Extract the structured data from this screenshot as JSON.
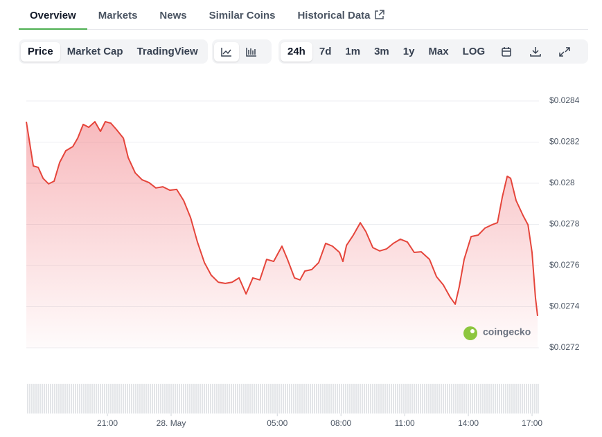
{
  "tabs": [
    "Overview",
    "Markets",
    "News",
    "Similar Coins",
    "Historical Data"
  ],
  "view_buttons": [
    "Price",
    "Market Cap",
    "TradingView"
  ],
  "range_buttons": [
    "24h",
    "7d",
    "1m",
    "3m",
    "1y",
    "Max",
    "LOG"
  ],
  "watermark": "coingecko",
  "chart_data": {
    "type": "line",
    "color": "#e5453b",
    "grid": true,
    "x": [
      17.18,
      17.51,
      17.74,
      17.97,
      18.23,
      18.49,
      18.75,
      19.04,
      19.37,
      19.6,
      19.86,
      20.12,
      20.41,
      20.67,
      20.9,
      21.16,
      21.42,
      21.75,
      21.98,
      22.31,
      22.63,
      22.96,
      23.28,
      23.61,
      23.94,
      24.26,
      24.59,
      24.92,
      25.24,
      25.57,
      25.89,
      26.22,
      26.55,
      26.87,
      27.2,
      27.53,
      27.85,
      28.18,
      28.5,
      28.83,
      29.22,
      29.48,
      29.81,
      30.07,
      30.3,
      30.62,
      30.95,
      31.28,
      31.6,
      31.93,
      32.09,
      32.26,
      32.58,
      32.91,
      33.17,
      33.5,
      33.82,
      34.15,
      34.47,
      34.8,
      35.13,
      35.45,
      35.78,
      36.17,
      36.5,
      36.82,
      37.15,
      37.38,
      37.57,
      37.8,
      38.13,
      38.46,
      38.78,
      39.11,
      39.37,
      39.6,
      39.83,
      39.99,
      40.25,
      40.58,
      40.81,
      41.0,
      41.16,
      41.26
    ],
    "values": [
      0.028299,
      0.028084,
      0.028077,
      0.028024,
      0.027997,
      0.02801,
      0.028101,
      0.028158,
      0.028178,
      0.028219,
      0.028286,
      0.028272,
      0.028299,
      0.028252,
      0.028299,
      0.028292,
      0.028262,
      0.028219,
      0.028124,
      0.02805,
      0.028017,
      0.028003,
      0.027977,
      0.027983,
      0.027966,
      0.02797,
      0.027916,
      0.027832,
      0.027714,
      0.027614,
      0.027553,
      0.027519,
      0.027513,
      0.027519,
      0.02754,
      0.027462,
      0.02754,
      0.02753,
      0.02763,
      0.02762,
      0.027694,
      0.02763,
      0.02754,
      0.02753,
      0.027573,
      0.02758,
      0.027614,
      0.027708,
      0.027694,
      0.027664,
      0.02762,
      0.027698,
      0.027748,
      0.027808,
      0.027765,
      0.027687,
      0.027671,
      0.027681,
      0.027708,
      0.027728,
      0.027714,
      0.027664,
      0.027667,
      0.02763,
      0.027546,
      0.027506,
      0.027445,
      0.027412,
      0.027496,
      0.02763,
      0.027741,
      0.027748,
      0.027782,
      0.027798,
      0.027808,
      0.027933,
      0.028034,
      0.028024,
      0.027916,
      0.027842,
      0.027798,
      0.027664,
      0.027445,
      0.027355
    ],
    "xlim": [
      17.18,
      41.26
    ],
    "xticks": [
      {
        "value": 21,
        "label": "21:00"
      },
      {
        "value": 24,
        "label": "28. May"
      },
      {
        "value": 29,
        "label": "05:00"
      },
      {
        "value": 32,
        "label": "08:00"
      },
      {
        "value": 35,
        "label": "11:00"
      },
      {
        "value": 38,
        "label": "14:00"
      },
      {
        "value": 41,
        "label": "17:00"
      }
    ],
    "ylim": [
      0.0272,
      0.0284
    ],
    "yticks": [
      {
        "value": 0.0272,
        "label": "$0.0272"
      },
      {
        "value": 0.0274,
        "label": "$0.0274"
      },
      {
        "value": 0.0276,
        "label": "$0.0276"
      },
      {
        "value": 0.0278,
        "label": "$0.0278"
      },
      {
        "value": 0.028,
        "label": "$0.028"
      },
      {
        "value": 0.0282,
        "label": "$0.0282"
      },
      {
        "value": 0.0284,
        "label": "$0.0284"
      }
    ]
  }
}
